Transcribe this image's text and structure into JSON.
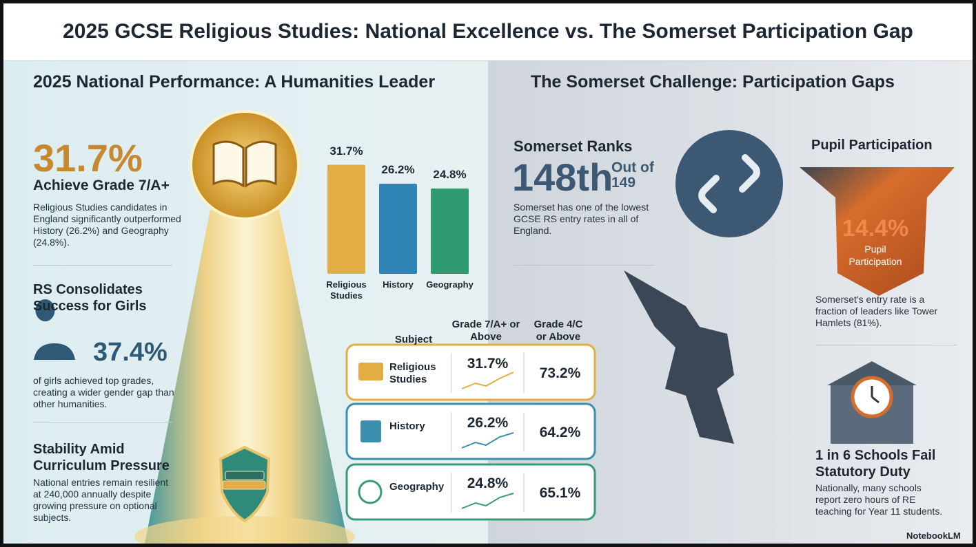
{
  "header": {
    "title": "2025 GCSE Religious Studies: National Excellence vs. The Somerset Participation Gap"
  },
  "left": {
    "heading": "2025 National Performance: A Humanities Leader",
    "stat1": {
      "value": "31.7%",
      "label": "Achieve Grade 7/A+",
      "text": "Religious Studies candidates in England significantly outperformed History (26.2%) and Geography (24.8%)."
    },
    "stat2": {
      "heading": "RS Consolidates Success for Girls",
      "value": "37.4%",
      "text": "of girls achieved top grades, creating a wider gender gap than other humanities."
    },
    "stat3": {
      "heading": "Stability Amid Curriculum Pressure",
      "text": "National entries remain resilient at 240,000 annually despite growing pressure on optional subjects."
    }
  },
  "table": {
    "header": [
      "Subject",
      "Grade 7/A+ or Above",
      "Grade 4/C or Above"
    ],
    "rows": [
      [
        "Religious Studies",
        "31.7%",
        "73.2%"
      ],
      [
        "History",
        "26.2%",
        "64.2%"
      ],
      [
        "Geography",
        "24.8%",
        "65.1%"
      ]
    ]
  },
  "right": {
    "heading": "The Somerset Challenge: Participation Gaps",
    "rank": {
      "label": "Somerset Ranks",
      "value": "148th",
      "of": "Out of 149",
      "text": "Somerset has one of the lowest GCSE RS entry rates in all of England."
    },
    "participation": {
      "heading": "Pupil Participation",
      "value": "14.4%",
      "label": "Pupil Participation",
      "text": "Somerset's entry rate is a fraction of leaders like Tower Hamlets (81%)."
    },
    "schools": {
      "heading": "1 in 6 Schools Fail Statutory Duty",
      "text": "Nationally, many schools report zero hours of RE teaching for Year 11 students."
    }
  },
  "footer": {
    "brand": "NotebookLM"
  },
  "chart_data": {
    "type": "bar",
    "categories": [
      "Religious Studies",
      "History",
      "Geography"
    ],
    "values": [
      31.7,
      26.2,
      24.8
    ],
    "value_labels": [
      "31.7%",
      "26.2%",
      "24.8%"
    ],
    "colors": [
      "#e2ad45",
      "#2f86b6",
      "#2f9a72"
    ]
  }
}
